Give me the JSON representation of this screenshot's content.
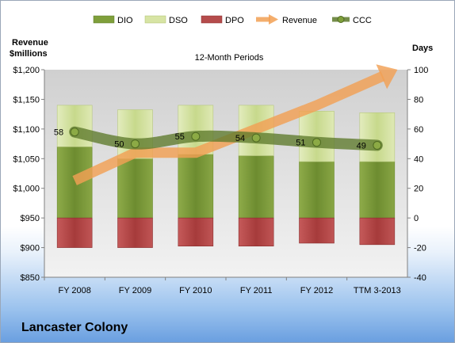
{
  "company": "Lancaster Colony",
  "chart_data": {
    "type": "bar",
    "title": "12-Month Periods",
    "left_axis_title": [
      "Revenue",
      "$millions"
    ],
    "right_axis_title": "Days",
    "categories": [
      "FY 2008",
      "FY 2009",
      "FY 2010",
      "FY 2011",
      "FY 2012",
      "TTM 3-2013"
    ],
    "left_ylim": [
      850,
      1200
    ],
    "left_ticks": [
      "$850",
      "$900",
      "$950",
      "$1,000",
      "$1,050",
      "$1,100",
      "$1,150",
      "$1,200"
    ],
    "left_tick_values": [
      850,
      900,
      950,
      1000,
      1050,
      1100,
      1150,
      1200
    ],
    "right_ylim": [
      -40,
      100
    ],
    "right_ticks": [
      "-40",
      "-20",
      "0",
      "20",
      "40",
      "60",
      "80",
      "100"
    ],
    "right_tick_values": [
      -40,
      -20,
      0,
      20,
      40,
      60,
      80,
      100
    ],
    "series": [
      {
        "name": "DIO",
        "axis": "right",
        "kind": "stacked-bar",
        "values": [
          48,
          40,
          43,
          42,
          38,
          38
        ],
        "color": "#7f9f3b"
      },
      {
        "name": "DSO",
        "axis": "right",
        "kind": "stacked-bar",
        "values": [
          28,
          33,
          33,
          34,
          34,
          33
        ],
        "color": "#d7e4a4"
      },
      {
        "name": "DPO",
        "axis": "right",
        "kind": "negative-bar",
        "values": [
          -20,
          -20,
          -19,
          -19,
          -17,
          -18
        ],
        "color": "#b54c4c"
      },
      {
        "name": "Revenue",
        "axis": "left",
        "kind": "arrow-line",
        "values": [
          1013,
          1060,
          1060,
          1100,
          1140,
          1185
        ],
        "color": "#f2a054"
      },
      {
        "name": "CCC",
        "axis": "right",
        "kind": "smooth-line",
        "values": [
          58,
          50,
          55,
          54,
          51,
          49
        ],
        "labels": [
          "58",
          "50",
          "55",
          "54",
          "51",
          "49"
        ],
        "color": "#5e7a2c"
      }
    ],
    "legend": [
      "DIO",
      "DSO",
      "DPO",
      "Revenue",
      "CCC"
    ],
    "legend_position": "top",
    "grid": false
  }
}
